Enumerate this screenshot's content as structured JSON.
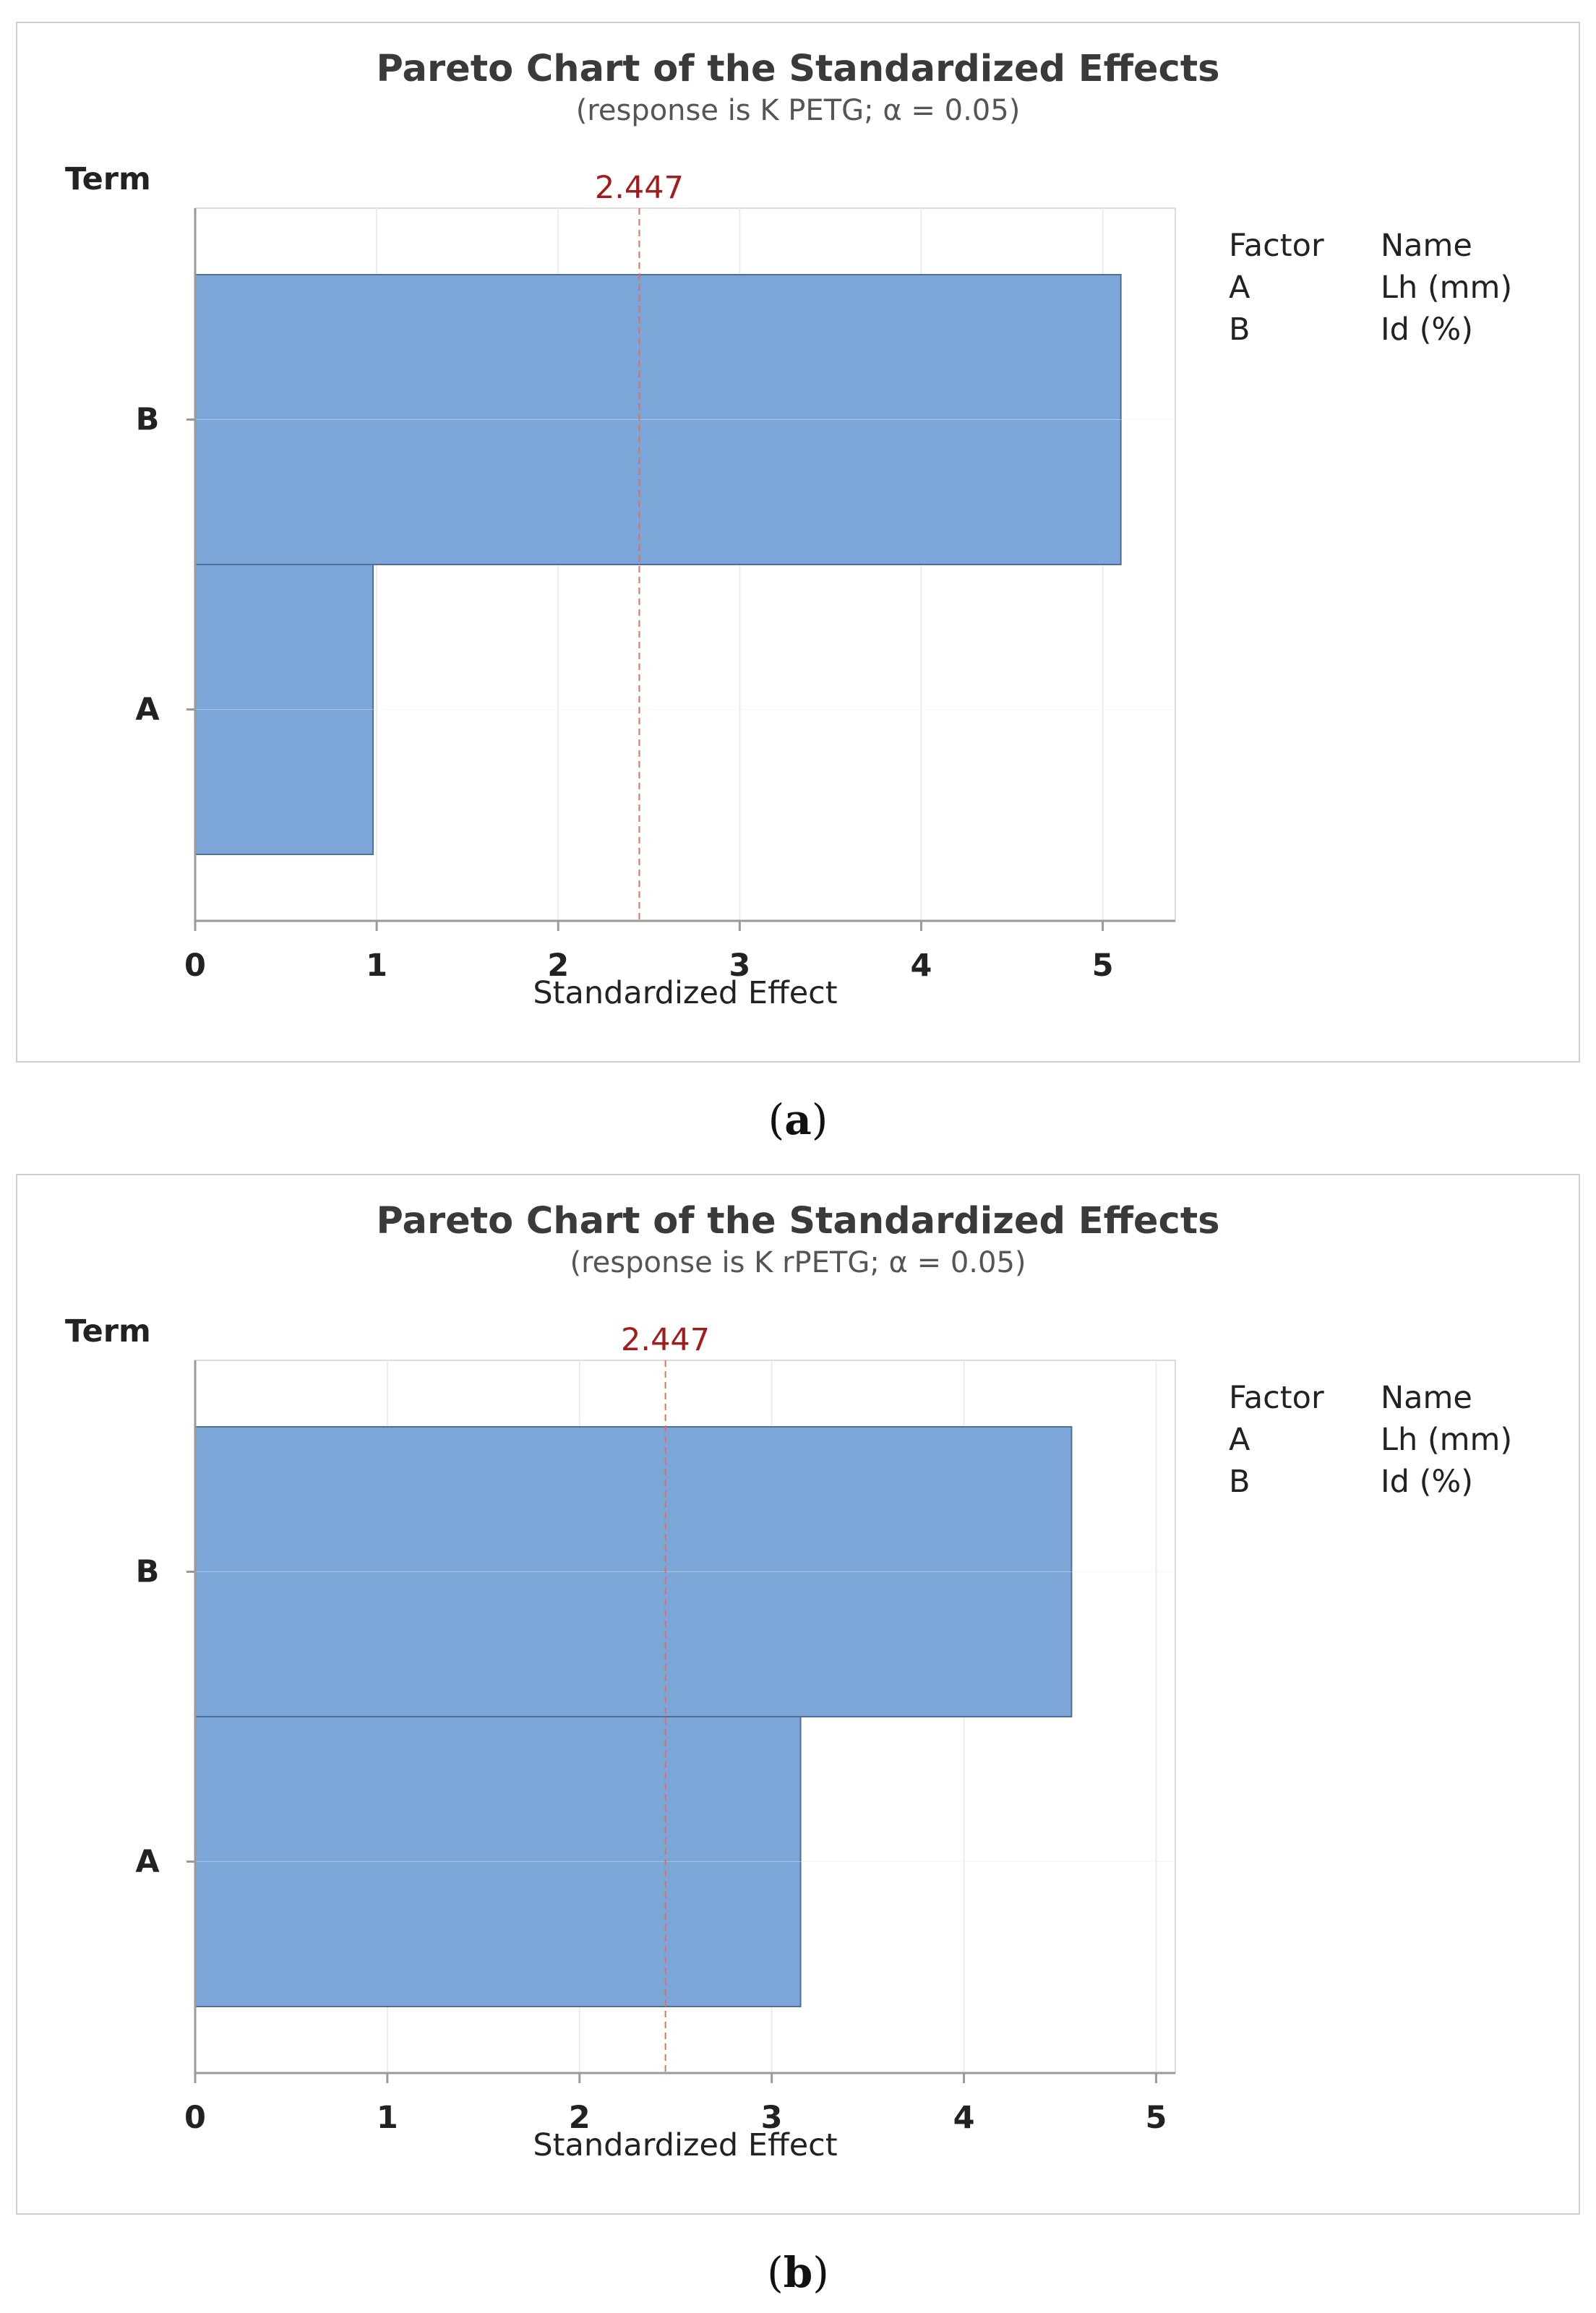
{
  "figures": [
    {
      "caption_letter": "a",
      "chart_data": {
        "type": "bar",
        "orientation": "horizontal",
        "title": "Pareto Chart of the Standardized Effects",
        "subtitle": "(response is K PETG; α = 0.05)",
        "ylabel": "Term",
        "xlabel": "Standardized Effect",
        "categories": [
          "B",
          "A"
        ],
        "values": [
          5.1,
          0.98
        ],
        "xlim": [
          0,
          5.4
        ],
        "xticks": [
          0,
          1,
          2,
          3,
          4,
          5
        ],
        "reference_line": {
          "value": 2.447,
          "label": "2.447"
        },
        "grid": true,
        "legend": {
          "placement": "right",
          "headers": [
            "Factor",
            "Name"
          ],
          "rows": [
            {
              "factor": "A",
              "name": "Lh (mm)"
            },
            {
              "factor": "B",
              "name": "Id (%)"
            }
          ]
        }
      }
    },
    {
      "caption_letter": "b",
      "chart_data": {
        "type": "bar",
        "orientation": "horizontal",
        "title": "Pareto Chart of the Standardized Effects",
        "subtitle": "(response is K rPETG; α = 0.05)",
        "ylabel": "Term",
        "xlabel": "Standardized Effect",
        "categories": [
          "B",
          "A"
        ],
        "values": [
          4.56,
          3.15
        ],
        "xlim": [
          0,
          5.1
        ],
        "xticks": [
          0,
          1,
          2,
          3,
          4,
          5
        ],
        "reference_line": {
          "value": 2.447,
          "label": "2.447"
        },
        "grid": true,
        "legend": {
          "placement": "right",
          "headers": [
            "Factor",
            "Name"
          ],
          "rows": [
            {
              "factor": "A",
              "name": "Lh (mm)"
            },
            {
              "factor": "B",
              "name": "Id (%)"
            }
          ]
        }
      }
    }
  ],
  "colors": {
    "bar_fill": "#7ca6d8",
    "bar_stroke": "#4f6f98",
    "reference_line": "#e0705a",
    "reference_label": "#a31c1c",
    "grid": "#ececec",
    "axis": "#9a9a9a",
    "text": "#222222",
    "title_text": "#3a3a3a",
    "subtitle_text": "#555555"
  }
}
